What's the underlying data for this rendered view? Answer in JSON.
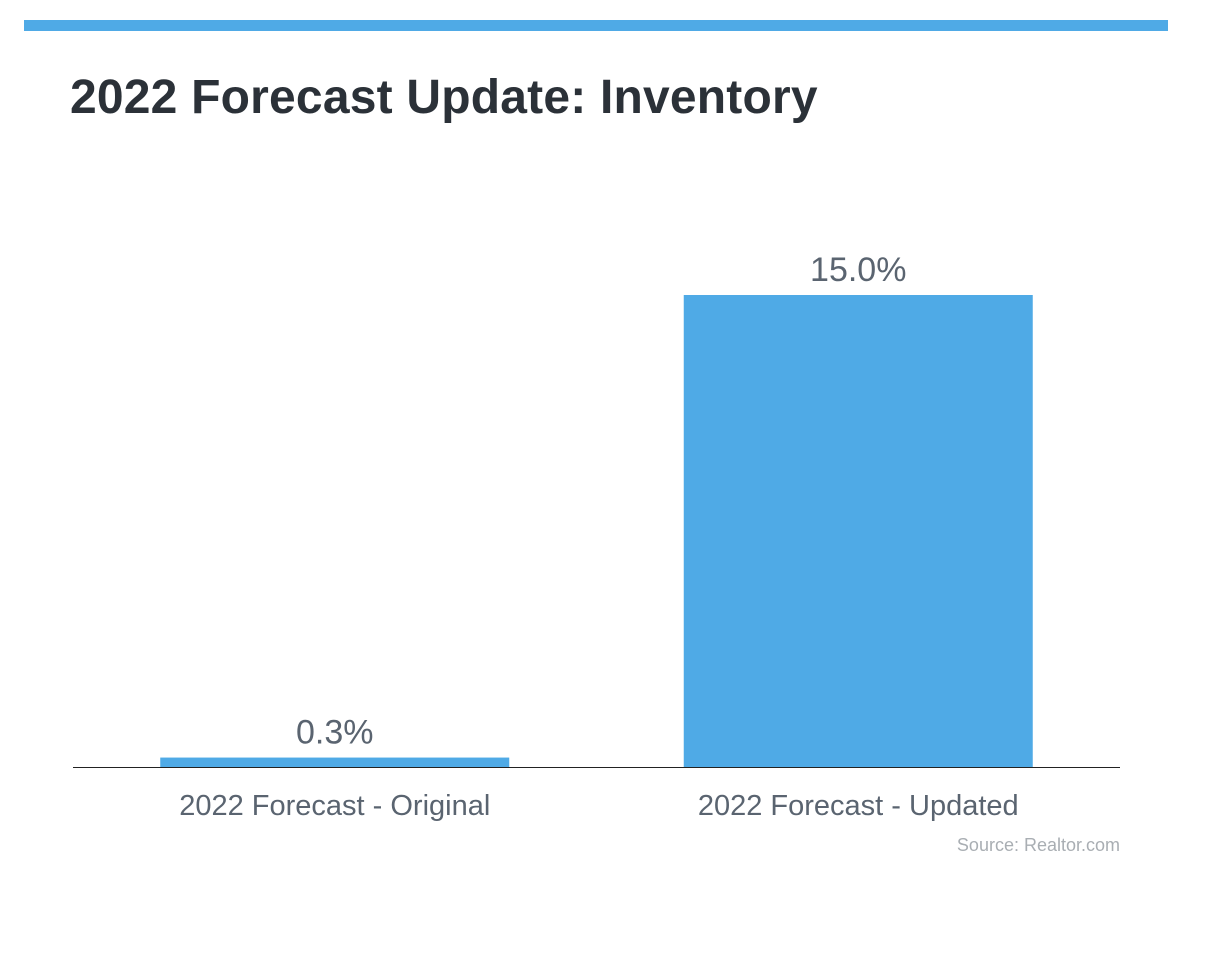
{
  "title": "2022 Forecast Update: Inventory",
  "source": "Source: Realtor.com",
  "colors": {
    "accent": "#4faae6",
    "bar": "#4faae6",
    "title": "#2b3138",
    "label": "#5a6470",
    "axis": "#222222",
    "source": "#a9aeb3"
  },
  "chart_data": {
    "type": "bar",
    "title": "2022 Forecast Update: Inventory",
    "categories": [
      "2022 Forecast - Original",
      "2022 Forecast - Updated"
    ],
    "values": [
      0.3,
      15.0
    ],
    "data_labels": [
      "0.3%",
      "15.0%"
    ],
    "xlabel": "",
    "ylabel": "",
    "ylim": [
      0,
      15
    ],
    "grid": false,
    "legend": "none"
  }
}
